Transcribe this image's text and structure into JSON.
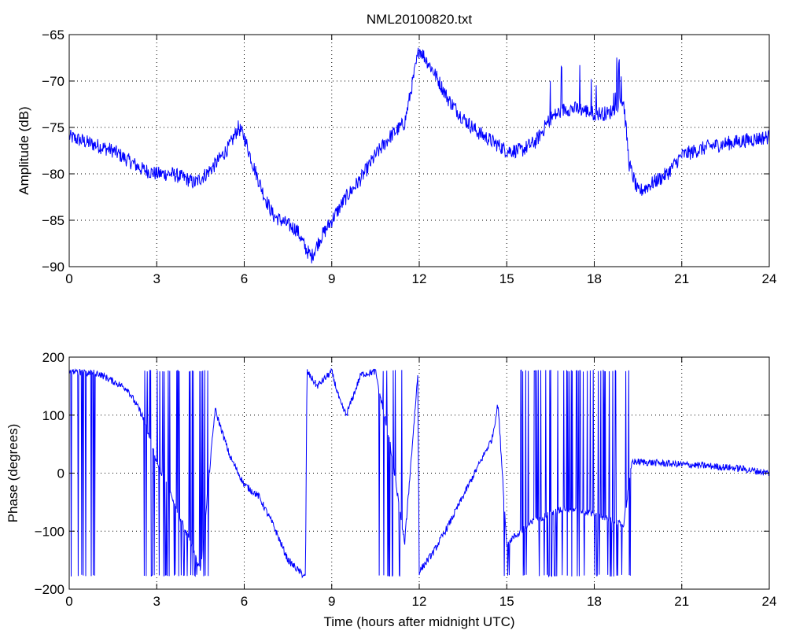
{
  "chart_data": [
    {
      "type": "line",
      "title": "NML20100820.txt",
      "xlabel": "",
      "ylabel": "Amplitude (dB)",
      "xlim": [
        0,
        24
      ],
      "ylim": [
        -90,
        -65
      ],
      "xticks": [
        0,
        3,
        6,
        9,
        12,
        15,
        18,
        21,
        24
      ],
      "yticks": [
        -90,
        -85,
        -80,
        -75,
        -70,
        -65
      ],
      "grid": true,
      "color": "#0000ff",
      "x": [
        0,
        0.5,
        1,
        1.5,
        2,
        2.5,
        3,
        3.5,
        4,
        4.3,
        4.7,
        5,
        5.5,
        5.8,
        6,
        6.3,
        6.7,
        7,
        7.5,
        7.8,
        8.1,
        8.3,
        8.6,
        9,
        9.5,
        10,
        10.5,
        11,
        11.5,
        12,
        12.5,
        13,
        13.5,
        14,
        14.5,
        15,
        15.5,
        16,
        16.5,
        17,
        17.5,
        18,
        18.5,
        19,
        19.2,
        19.5,
        20,
        20.5,
        21,
        22,
        23,
        24
      ],
      "y": [
        -76,
        -76.5,
        -77,
        -77.5,
        -78.5,
        -79.5,
        -80,
        -80,
        -80.5,
        -81,
        -80,
        -79,
        -77,
        -75,
        -76,
        -79,
        -82.5,
        -84.5,
        -85.5,
        -86,
        -88,
        -89,
        -87,
        -85,
        -82.5,
        -80.5,
        -78,
        -76,
        -74.5,
        -66.5,
        -69,
        -72,
        -74,
        -75.5,
        -76.5,
        -77.5,
        -77.5,
        -76.5,
        -74,
        -73,
        -73,
        -73.5,
        -73.5,
        -72,
        -79,
        -82,
        -81,
        -80,
        -78,
        -77,
        -76.5,
        -76
      ]
    },
    {
      "type": "line",
      "title": "",
      "xlabel": "Time (hours after midnight UTC)",
      "ylabel": "Phase (degrees)",
      "xlim": [
        0,
        24
      ],
      "ylim": [
        -200,
        200
      ],
      "xticks": [
        0,
        3,
        6,
        9,
        12,
        15,
        18,
        21,
        24
      ],
      "yticks": [
        -200,
        -100,
        0,
        100,
        200
      ],
      "grid": true,
      "color": "#0000ff",
      "wrap_range": [
        -180,
        180
      ],
      "x": [
        0,
        1,
        2,
        2.5,
        3,
        3.5,
        4,
        4.5,
        5,
        5.5,
        6,
        6.5,
        7,
        7.5,
        8.1,
        8.15,
        8.5,
        9,
        9.3,
        9.5,
        10,
        10.5,
        11,
        11.5,
        11.95,
        12,
        12.5,
        13,
        13.5,
        14,
        14.5,
        14.7,
        15,
        16,
        17,
        18,
        19,
        19.3,
        20,
        21,
        22,
        23,
        24
      ],
      "y": [
        175,
        172,
        145,
        100,
        20,
        -40,
        -100,
        -170,
        110,
        30,
        -20,
        -40,
        -90,
        -150,
        -180,
        175,
        150,
        175,
        120,
        100,
        170,
        175,
        50,
        -120,
        170,
        -170,
        -135,
        -90,
        -40,
        10,
        60,
        120,
        -120,
        -80,
        -60,
        -70,
        -90,
        20,
        18,
        15,
        12,
        8,
        0
      ]
    }
  ]
}
